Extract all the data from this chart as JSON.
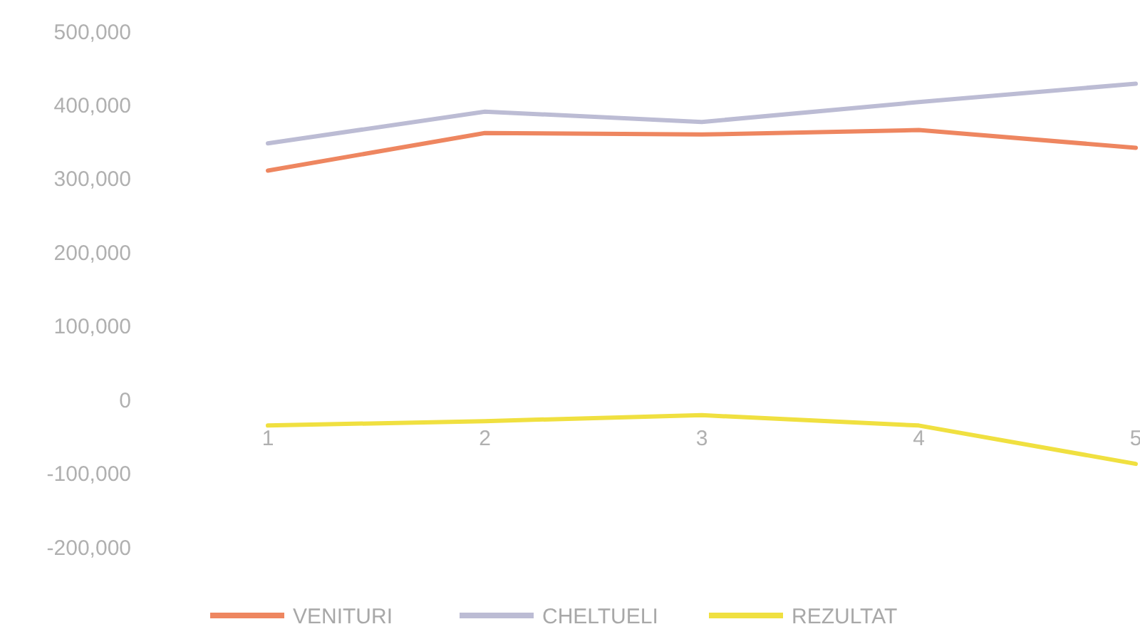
{
  "chart_data": {
    "type": "line",
    "categories": [
      "1",
      "2",
      "3",
      "4",
      "5"
    ],
    "series": [
      {
        "name": "VENITURI",
        "color": "#ee8660",
        "values": [
          311000,
          362000,
          360000,
          366000,
          342000
        ]
      },
      {
        "name": "CHELTUELI",
        "color": "#bcbcd4",
        "values": [
          348000,
          391000,
          377000,
          404000,
          429000
        ]
      },
      {
        "name": "REZULTAT",
        "color": "#f0e040",
        "values": [
          -35000,
          -29000,
          -21000,
          -35000,
          -87000
        ]
      }
    ],
    "ylim": [
      -200000,
      500000
    ],
    "yticks": [
      {
        "value": -200000,
        "label": "-200,000"
      },
      {
        "value": -100000,
        "label": "-100,000"
      },
      0,
      {
        "value": 100000,
        "label": "100,000"
      },
      {
        "value": 200000,
        "label": "200,000"
      },
      {
        "value": 300000,
        "label": "300,000"
      },
      {
        "value": 400000,
        "label": "400,000"
      },
      {
        "value": 500000,
        "label": "500,000"
      }
    ],
    "legend": "bottom",
    "grid": false,
    "marker": "none",
    "line_style": "solid"
  }
}
